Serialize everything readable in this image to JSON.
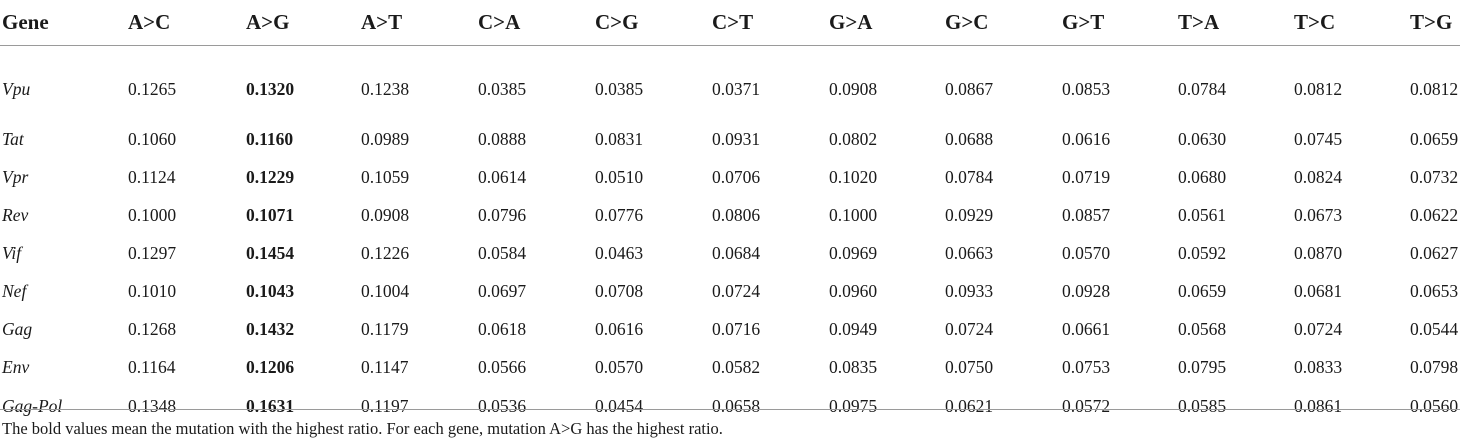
{
  "table": {
    "headers": [
      "Gene",
      "A>C",
      "A>G",
      "A>T",
      "C>A",
      "C>G",
      "C>T",
      "G>A",
      "G>C",
      "G>T",
      "T>A",
      "T>C",
      "T>G"
    ],
    "rows": [
      [
        "Vpu",
        "0.1265",
        "0.1320",
        "0.1238",
        "0.0385",
        "0.0385",
        "0.0371",
        "0.0908",
        "0.0867",
        "0.0853",
        "0.0784",
        "0.0812",
        "0.0812"
      ],
      [
        "Tat",
        "0.1060",
        "0.1160",
        "0.0989",
        "0.0888",
        "0.0831",
        "0.0931",
        "0.0802",
        "0.0688",
        "0.0616",
        "0.0630",
        "0.0745",
        "0.0659"
      ],
      [
        "Vpr",
        "0.1124",
        "0.1229",
        "0.1059",
        "0.0614",
        "0.0510",
        "0.0706",
        "0.1020",
        "0.0784",
        "0.0719",
        "0.0680",
        "0.0824",
        "0.0732"
      ],
      [
        "Rev",
        "0.1000",
        "0.1071",
        "0.0908",
        "0.0796",
        "0.0776",
        "0.0806",
        "0.1000",
        "0.0929",
        "0.0857",
        "0.0561",
        "0.0673",
        "0.0622"
      ],
      [
        "Vif",
        "0.1297",
        "0.1454",
        "0.1226",
        "0.0584",
        "0.0463",
        "0.0684",
        "0.0969",
        "0.0663",
        "0.0570",
        "0.0592",
        "0.0870",
        "0.0627"
      ],
      [
        "Nef",
        "0.1010",
        "0.1043",
        "0.1004",
        "0.0697",
        "0.0708",
        "0.0724",
        "0.0960",
        "0.0933",
        "0.0928",
        "0.0659",
        "0.0681",
        "0.0653"
      ],
      [
        "Gag",
        "0.1268",
        "0.1432",
        "0.1179",
        "0.0618",
        "0.0616",
        "0.0716",
        "0.0949",
        "0.0724",
        "0.0661",
        "0.0568",
        "0.0724",
        "0.0544"
      ],
      [
        "Env",
        "0.1164",
        "0.1206",
        "0.1147",
        "0.0566",
        "0.0570",
        "0.0582",
        "0.0835",
        "0.0750",
        "0.0753",
        "0.0795",
        "0.0833",
        "0.0798"
      ],
      [
        "Gag-Pol",
        "0.1348",
        "0.1631",
        "0.1197",
        "0.0536",
        "0.0454",
        "0.0658",
        "0.0975",
        "0.0621",
        "0.0572",
        "0.0585",
        "0.0861",
        "0.0560"
      ]
    ],
    "bold_column": "A>G"
  },
  "footnote": "The bold values mean the mutation with the highest ratio. For each gene, mutation A>G has the highest ratio."
}
